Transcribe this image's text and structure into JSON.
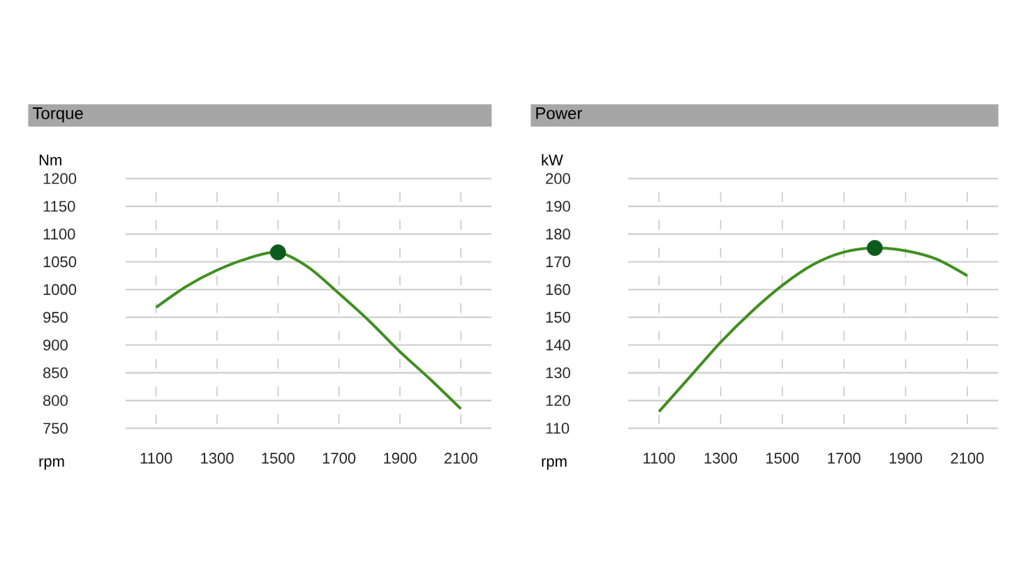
{
  "chart_data": [
    {
      "type": "line",
      "title": "Torque",
      "xlabel": "rpm",
      "ylabel": "Nm",
      "xlim": [
        1000,
        2200
      ],
      "xticks": [
        1100,
        1300,
        1500,
        1700,
        1900,
        2100
      ],
      "ylim": [
        750,
        1200
      ],
      "yticks": [
        750,
        800,
        850,
        900,
        950,
        1000,
        1050,
        1100,
        1150,
        1200
      ],
      "grid": true,
      "series": [
        {
          "color": "#3f8f1f",
          "x": [
            1100,
            1200,
            1300,
            1400,
            1500,
            1600,
            1700,
            1800,
            1900,
            2000,
            2100
          ],
          "values": [
            968,
            1006,
            1035,
            1056,
            1067,
            1040,
            993,
            943,
            888,
            838,
            785
          ]
        },
        {
          "type": "scatter",
          "marker": "circle",
          "color": "#0b5c1c",
          "x": [
            1500
          ],
          "values": [
            1067
          ]
        }
      ]
    },
    {
      "type": "line",
      "title": "Power",
      "xlabel": "rpm",
      "ylabel": "kW",
      "xlim": [
        1000,
        2200
      ],
      "xticks": [
        1100,
        1300,
        1500,
        1700,
        1900,
        2100
      ],
      "ylim": [
        110,
        200
      ],
      "yticks": [
        110,
        120,
        130,
        140,
        150,
        160,
        170,
        180,
        190,
        200
      ],
      "grid": true,
      "series": [
        {
          "color": "#3f8f1f",
          "x": [
            1100,
            1200,
            1300,
            1400,
            1500,
            1600,
            1700,
            1800,
            1900,
            2000,
            2100
          ],
          "values": [
            116,
            128.5,
            141,
            152,
            161.5,
            169,
            173.5,
            175,
            174,
            171,
            165
          ]
        },
        {
          "type": "scatter",
          "marker": "circle",
          "color": "#0b5c1c",
          "x": [
            1800
          ],
          "values": [
            175
          ]
        }
      ]
    }
  ]
}
